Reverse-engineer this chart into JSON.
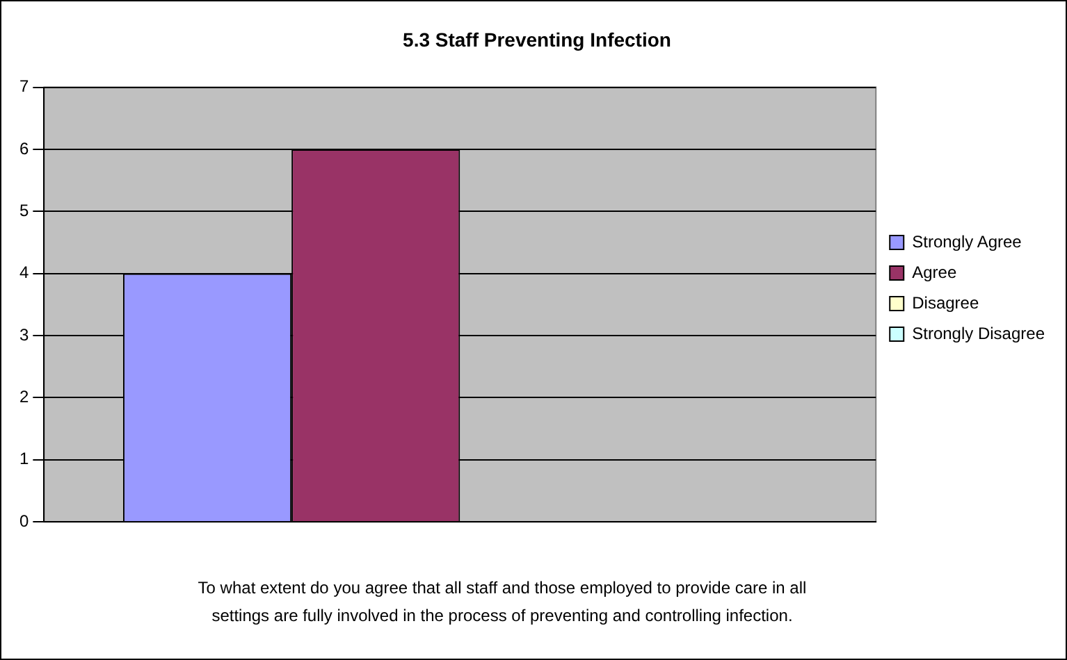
{
  "chart_data": {
    "type": "bar",
    "title": "5.3 Staff Preventing Infection",
    "xlabel": "To what extent do you agree that all staff and those employed to provide care in all settings are fully involved in the process of preventing and controlling infection.",
    "categories": [
      null
    ],
    "series": [
      {
        "name": "Strongly Agree",
        "color": "#9999ff",
        "values": [
          4
        ]
      },
      {
        "name": "Agree",
        "color": "#993366",
        "values": [
          6
        ]
      },
      {
        "name": "Disagree",
        "color": "#ffffcc",
        "values": [
          0
        ]
      },
      {
        "name": "Strongly Disagree",
        "color": "#ccffff",
        "values": [
          0
        ]
      }
    ],
    "ylim": [
      0,
      7
    ],
    "yticks": [
      0,
      1,
      2,
      3,
      4,
      5,
      6,
      7
    ],
    "grid": "y",
    "legend": "right"
  }
}
